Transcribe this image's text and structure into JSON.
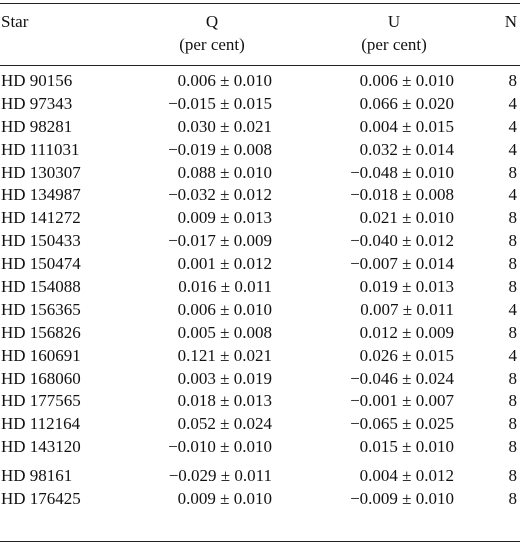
{
  "table": {
    "headers": {
      "star": "Star",
      "q": "Q",
      "q_unit": "(per cent)",
      "u": "U",
      "u_unit": "(per cent)",
      "n": "N"
    },
    "rows": [
      {
        "star": "HD 90156",
        "q": "0.006 ± 0.010",
        "u": "0.006 ± 0.010",
        "n": "8"
      },
      {
        "star": "HD 97343",
        "q": "−0.015 ± 0.015",
        "u": "0.066 ± 0.020",
        "n": "4"
      },
      {
        "star": "HD 98281",
        "q": "0.030 ± 0.021",
        "u": "0.004 ± 0.015",
        "n": "4"
      },
      {
        "star": "HD 111031",
        "q": "−0.019 ± 0.008",
        "u": "0.032 ± 0.014",
        "n": "4"
      },
      {
        "star": "HD 130307",
        "q": "0.088 ± 0.010",
        "u": "−0.048 ± 0.010",
        "n": "8"
      },
      {
        "star": "HD 134987",
        "q": "−0.032 ± 0.012",
        "u": "−0.018 ± 0.008",
        "n": "4"
      },
      {
        "star": "HD 141272",
        "q": "0.009 ± 0.013",
        "u": "0.021 ± 0.010",
        "n": "8"
      },
      {
        "star": "HD 150433",
        "q": "−0.017 ± 0.009",
        "u": "−0.040 ± 0.012",
        "n": "8"
      },
      {
        "star": "HD 150474",
        "q": "0.001 ± 0.012",
        "u": "−0.007 ± 0.014",
        "n": "8"
      },
      {
        "star": "HD 154088",
        "q": "0.016 ± 0.011",
        "u": "0.019 ± 0.013",
        "n": "8"
      },
      {
        "star": "HD 156365",
        "q": "0.006 ± 0.010",
        "u": "0.007 ± 0.011",
        "n": "4"
      },
      {
        "star": "HD 156826",
        "q": "0.005 ± 0.008",
        "u": "0.012 ± 0.009",
        "n": "8"
      },
      {
        "star": "HD 160691",
        "q": "0.121 ± 0.021",
        "u": "0.026 ± 0.015",
        "n": "4"
      },
      {
        "star": "HD 168060",
        "q": "0.003 ± 0.019",
        "u": "−0.046 ± 0.024",
        "n": "8"
      },
      {
        "star": "HD 177565",
        "q": "0.018 ± 0.013",
        "u": "−0.001 ± 0.007",
        "n": "8"
      },
      {
        "star": "HD 112164",
        "q": "0.052 ± 0.024",
        "u": "−0.065 ± 0.025",
        "n": "8"
      },
      {
        "star": "HD 143120",
        "q": "−0.010 ± 0.010",
        "u": "0.015 ± 0.010",
        "n": "8"
      },
      {
        "star": "HD 98161",
        "q": "−0.029 ± 0.011",
        "u": "0.004 ± 0.012",
        "n": "8"
      },
      {
        "star": "HD 176425",
        "q": "0.009 ± 0.010",
        "u": "−0.009 ± 0.010",
        "n": "8"
      }
    ]
  }
}
